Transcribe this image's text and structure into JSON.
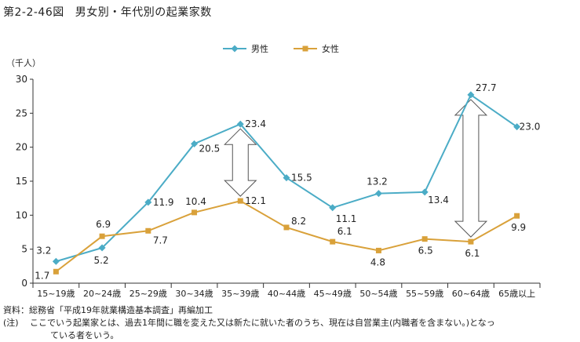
{
  "figure": {
    "number": "第2-2-46図",
    "title": "男女別・年代別の起業家数"
  },
  "chart_data": {
    "type": "line",
    "ylabel": "（千人）",
    "ylim": [
      0,
      30
    ],
    "yticks": [
      0,
      5,
      10,
      15,
      20,
      25,
      30
    ],
    "grid": false,
    "legend_position": "top-center",
    "categories": [
      "15~19歳",
      "20~24歳",
      "25~29歳",
      "30~34歳",
      "35~39歳",
      "40~44歳",
      "45~49歳",
      "50~54歳",
      "55~59歳",
      "60~64歳",
      "65歳以上"
    ],
    "series": [
      {
        "name": "男性",
        "color": "#4bacc6",
        "marker": "diamond",
        "values": [
          3.2,
          5.2,
          11.9,
          20.5,
          23.4,
          15.5,
          11.1,
          13.2,
          13.4,
          27.7,
          23.0
        ],
        "labels": [
          "3.2",
          "5.2",
          "11.9",
          "20.5",
          "23.4",
          "15.5",
          "11.1",
          "13.2",
          "13.4",
          "27.7",
          "23.0"
        ]
      },
      {
        "name": "女性",
        "color": "#d9a13a",
        "marker": "square",
        "values": [
          1.7,
          6.9,
          7.7,
          10.4,
          12.1,
          8.2,
          6.1,
          4.8,
          6.5,
          6.1,
          9.9
        ],
        "labels": [
          "1.7",
          "6.9",
          "7.7",
          "10.4",
          "12.1",
          "8.2",
          "6.1",
          "4.8",
          "6.5",
          "6.1",
          "9.9"
        ]
      }
    ],
    "annotations": [
      {
        "type": "double-arrow",
        "category": "35~39歳",
        "from": 12.1,
        "to": 23.4
      },
      {
        "type": "double-arrow",
        "category": "60~64歳",
        "from": 6.1,
        "to": 27.7
      }
    ]
  },
  "notes": {
    "source": "資料：総務省「平成19年就業構造基本調査」再編加工",
    "footnote_tag": "(注)",
    "footnote_line1": "ここでいう起業家とは、過去1年間に職を変えた又は新たに就いた者のうち、現在は自営業主(内職者を含まない。)となっ",
    "footnote_line2": "ている者をいう。"
  }
}
